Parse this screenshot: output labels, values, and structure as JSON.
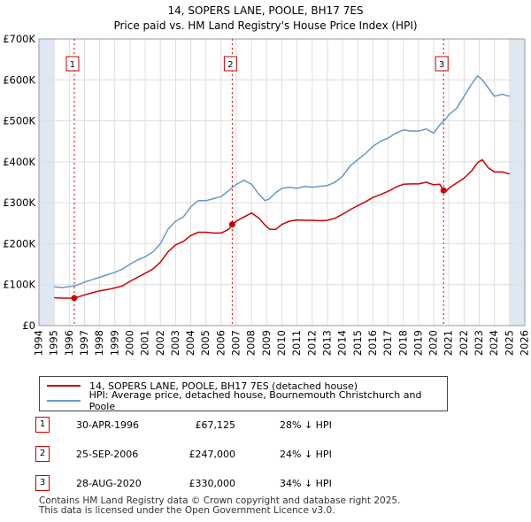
{
  "title": {
    "line1": "14, SOPERS LANE, POOLE, BH17 7ES",
    "line2": "Price paid vs. HM Land Registry's House Price Index (HPI)"
  },
  "colors": {
    "property": "#cc0000",
    "hpi": "#6a98c8",
    "marker": "#cc0000",
    "shade": "#dfe7f3",
    "grid": "#dddddd"
  },
  "chart_data": {
    "type": "line",
    "title": "Price paid vs. HM Land Registry's House Price Index (HPI)",
    "xlim": [
      1994,
      2026
    ],
    "ylim": [
      0,
      700000
    ],
    "y_ticks": [
      0,
      100000,
      200000,
      300000,
      400000,
      500000,
      600000,
      700000
    ],
    "y_tick_labels": [
      "£0",
      "£100K",
      "£200K",
      "£300K",
      "£400K",
      "£500K",
      "£600K",
      "£700K"
    ],
    "x_ticks": [
      1994,
      1995,
      1996,
      1997,
      1998,
      1999,
      2000,
      2001,
      2002,
      2003,
      2004,
      2005,
      2006,
      2007,
      2008,
      2009,
      2010,
      2011,
      2012,
      2013,
      2014,
      2015,
      2016,
      2017,
      2018,
      2019,
      2020,
      2021,
      2022,
      2023,
      2024,
      2025,
      2026
    ],
    "x_tick_labels": [
      "1994",
      "1995",
      "1996",
      "1997",
      "1998",
      "1999",
      "2000",
      "2001",
      "2002",
      "2003",
      "2004",
      "2005",
      "2006",
      "2007",
      "2008",
      "2009",
      "2010",
      "2011",
      "2012",
      "2013",
      "2014",
      "2015",
      "2016",
      "2017",
      "2018",
      "2019",
      "2020",
      "2021",
      "2022",
      "2023",
      "2024",
      "2025",
      "2026"
    ],
    "shaded_ranges": [
      [
        1994,
        1995
      ],
      [
        2025,
        2026
      ]
    ],
    "series": [
      {
        "name": "HPI: Average price, detached house, Bournemouth Christchurch and Poole",
        "x": [
          1995,
          1995.5,
          1996,
          1996.3,
          1996.6,
          1997,
          1997.5,
          1998,
          1998.5,
          1999,
          1999.5,
          2000,
          2000.5,
          2001,
          2001.5,
          2002,
          2002.5,
          2003,
          2003.5,
          2004,
          2004.5,
          2005,
          2005.5,
          2006,
          2006.5,
          2007,
          2007.5,
          2008,
          2008.5,
          2008.9,
          2009.2,
          2009.6,
          2010,
          2010.5,
          2011,
          2011.5,
          2012,
          2012.5,
          2013,
          2013.5,
          2014,
          2014.5,
          2015,
          2015.5,
          2016,
          2016.5,
          2017,
          2017.5,
          2018,
          2018.5,
          2019,
          2019.5,
          2020,
          2020.4,
          2020.8,
          2021,
          2021.5,
          2022,
          2022.5,
          2022.9,
          2023.2,
          2023.6,
          2024,
          2024.5,
          2025
        ],
        "y": [
          95000,
          93000,
          95000,
          97000,
          100000,
          106000,
          112000,
          118000,
          124000,
          130000,
          138000,
          150000,
          160000,
          168000,
          180000,
          200000,
          235000,
          255000,
          265000,
          290000,
          305000,
          305000,
          310000,
          315000,
          330000,
          345000,
          355000,
          345000,
          320000,
          305000,
          310000,
          325000,
          335000,
          338000,
          335000,
          340000,
          338000,
          340000,
          342000,
          350000,
          365000,
          390000,
          405000,
          420000,
          438000,
          450000,
          458000,
          470000,
          478000,
          475000,
          475000,
          480000,
          470000,
          490000,
          505000,
          515000,
          530000,
          560000,
          590000,
          610000,
          600000,
          580000,
          560000,
          565000,
          560000
        ]
      },
      {
        "name": "14, SOPERS LANE, POOLE, BH17 7ES (detached house)",
        "x": [
          1995,
          1995.5,
          1996,
          1996.33,
          1996.6,
          1997,
          1997.5,
          1998,
          1998.5,
          1999,
          1999.5,
          2000,
          2000.5,
          2001,
          2001.5,
          2002,
          2002.5,
          2003,
          2003.5,
          2004,
          2004.5,
          2005,
          2005.5,
          2006,
          2006.5,
          2006.73,
          2007,
          2007.5,
          2008,
          2008.5,
          2008.9,
          2009.2,
          2009.6,
          2010,
          2010.5,
          2011,
          2011.5,
          2012,
          2012.5,
          2013,
          2013.5,
          2014,
          2014.5,
          2015,
          2015.5,
          2016,
          2016.5,
          2017,
          2017.5,
          2018,
          2018.5,
          2019,
          2019.5,
          2020,
          2020.4,
          2020.65,
          2020.8,
          2021,
          2021.5,
          2022,
          2022.5,
          2022.9,
          2023.2,
          2023.6,
          2024,
          2024.5,
          2025
        ],
        "y": [
          68000,
          67000,
          67000,
          67125,
          70000,
          75000,
          80000,
          85000,
          88000,
          92000,
          97000,
          108000,
          118000,
          128000,
          138000,
          155000,
          180000,
          197000,
          205000,
          220000,
          228000,
          228000,
          226000,
          226000,
          235000,
          247000,
          255000,
          265000,
          275000,
          262000,
          245000,
          235000,
          235000,
          247000,
          255000,
          258000,
          257000,
          257000,
          256000,
          257000,
          262000,
          272000,
          283000,
          293000,
          302000,
          313000,
          320000,
          328000,
          338000,
          345000,
          346000,
          346000,
          350000,
          344000,
          345000,
          330000,
          328000,
          335000,
          348000,
          360000,
          378000,
          398000,
          405000,
          385000,
          375000,
          375000,
          370000
        ]
      }
    ],
    "sale_points": [
      {
        "label": "1",
        "x": 1996.33,
        "y": 67125
      },
      {
        "label": "2",
        "x": 2006.73,
        "y": 247000
      },
      {
        "label": "3",
        "x": 2020.65,
        "y": 330000
      }
    ]
  },
  "legend": {
    "property_label": "14, SOPERS LANE, POOLE, BH17 7ES (detached house)",
    "hpi_label": "HPI: Average price, detached house, Bournemouth Christchurch and Poole"
  },
  "sales": [
    {
      "num": "1",
      "date": "30-APR-1996",
      "price": "£67,125",
      "pct": "28% ↓ HPI"
    },
    {
      "num": "2",
      "date": "25-SEP-2006",
      "price": "£247,000",
      "pct": "24% ↓ HPI"
    },
    {
      "num": "3",
      "date": "28-AUG-2020",
      "price": "£330,000",
      "pct": "34% ↓ HPI"
    }
  ],
  "footer": {
    "line1": "Contains HM Land Registry data © Crown copyright and database right 2025.",
    "line2": "This data is licensed under the Open Government Licence v3.0."
  }
}
